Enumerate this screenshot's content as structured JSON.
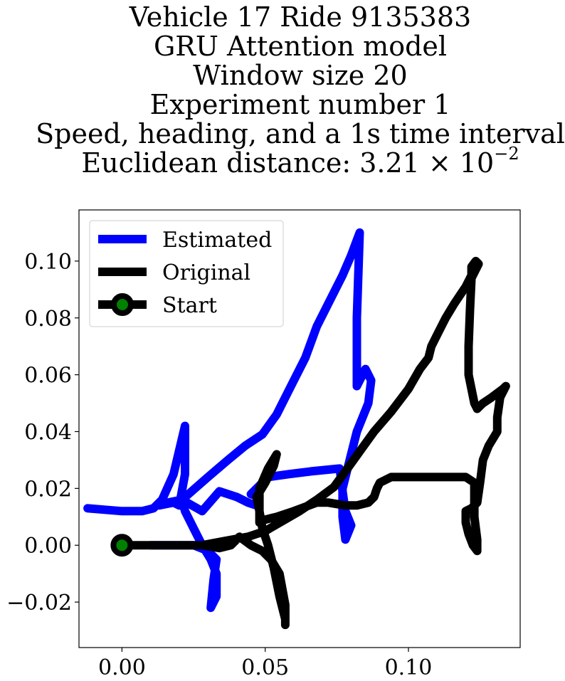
{
  "title_lines": [
    "Vehicle 17 Ride 9135383",
    "GRU Attention model",
    "Window size 20",
    "Experiment number 1",
    "Speed, heading, and a 1s time interval"
  ],
  "title_distance": {
    "prefix": "Euclidean distance: 3.21",
    "times": "×",
    "base": "10",
    "exponent": "−2"
  },
  "chart_data": {
    "type": "line",
    "xlim": [
      -0.015,
      0.139
    ],
    "ylim": [
      -0.036,
      0.118
    ],
    "xticks": [
      0.0,
      0.05,
      0.1
    ],
    "xtick_labels": [
      "0.00",
      "0.05",
      "0.10"
    ],
    "yticks": [
      -0.02,
      0.0,
      0.02,
      0.04,
      0.06,
      0.08,
      0.1
    ],
    "ytick_labels": [
      "−0.02",
      "0.00",
      "0.02",
      "0.04",
      "0.06",
      "0.08",
      "0.10"
    ],
    "grid": false,
    "legend_position": "top-left",
    "series": [
      {
        "name": "Estimated",
        "color": "#0000ff",
        "points": [
          [
            -0.012,
            0.013
          ],
          [
            -0.006,
            0.0125
          ],
          [
            0.0,
            0.012
          ],
          [
            0.007,
            0.012
          ],
          [
            0.011,
            0.013
          ],
          [
            0.014,
            0.016
          ],
          [
            0.018,
            0.025
          ],
          [
            0.022,
            0.042
          ],
          [
            0.022,
            0.025
          ],
          [
            0.02,
            0.014
          ],
          [
            0.018,
            0.015
          ],
          [
            0.013,
            0.014
          ],
          [
            0.016,
            0.015
          ],
          [
            0.021,
            0.016
          ],
          [
            0.028,
            0.012
          ],
          [
            0.034,
            0.019
          ],
          [
            0.04,
            0.017
          ],
          [
            0.044,
            0.015
          ],
          [
            0.047,
            0.014
          ],
          [
            0.048,
            0.017
          ],
          [
            0.045,
            0.018
          ],
          [
            0.049,
            0.022
          ],
          [
            0.051,
            0.024
          ],
          [
            0.058,
            0.025
          ],
          [
            0.066,
            0.026
          ],
          [
            0.076,
            0.027
          ],
          [
            0.077,
            0.019
          ],
          [
            0.078,
            0.012
          ],
          [
            0.08,
            0.007
          ],
          [
            0.078,
            0.002
          ],
          [
            0.077,
            0.01
          ],
          [
            0.077,
            0.02
          ],
          [
            0.079,
            0.028
          ],
          [
            0.082,
            0.04
          ],
          [
            0.086,
            0.05
          ],
          [
            0.087,
            0.058
          ],
          [
            0.085,
            0.062
          ],
          [
            0.082,
            0.056
          ],
          [
            0.082,
            0.08
          ],
          [
            0.083,
            0.11
          ],
          [
            0.08,
            0.102
          ],
          [
            0.077,
            0.095
          ],
          [
            0.073,
            0.087
          ],
          [
            0.068,
            0.077
          ],
          [
            0.064,
            0.066
          ],
          [
            0.059,
            0.056
          ],
          [
            0.054,
            0.046
          ],
          [
            0.049,
            0.039
          ],
          [
            0.043,
            0.035
          ],
          [
            0.037,
            0.03
          ],
          [
            0.03,
            0.024
          ],
          [
            0.021,
            0.016
          ],
          [
            0.022,
            0.012
          ],
          [
            0.025,
            0.006
          ],
          [
            0.028,
            0.0
          ],
          [
            0.031,
            -0.005
          ],
          [
            0.033,
            -0.01
          ],
          [
            0.033,
            -0.018
          ],
          [
            0.031,
            -0.022
          ],
          [
            0.032,
            -0.012
          ],
          [
            0.033,
            -0.005
          ],
          [
            0.03,
            -0.002
          ],
          [
            0.025,
            0.0
          ],
          [
            0.02,
            0.0
          ],
          [
            0.015,
            0.0
          ],
          [
            0.01,
            0.0
          ]
        ]
      },
      {
        "name": "Original",
        "color": "#000000",
        "points": [
          [
            0.0,
            0.0
          ],
          [
            0.01,
            0.0
          ],
          [
            0.02,
            0.0
          ],
          [
            0.028,
            0.0
          ],
          [
            0.036,
            0.0015
          ],
          [
            0.044,
            0.003
          ],
          [
            0.05,
            0.005
          ],
          [
            0.056,
            0.0085
          ],
          [
            0.062,
            0.012
          ],
          [
            0.068,
            0.016
          ],
          [
            0.074,
            0.0205
          ],
          [
            0.078,
            0.026
          ],
          [
            0.083,
            0.033
          ],
          [
            0.088,
            0.04
          ],
          [
            0.094,
            0.047
          ],
          [
            0.1,
            0.055
          ],
          [
            0.104,
            0.062
          ],
          [
            0.107,
            0.066
          ],
          [
            0.108,
            0.07
          ],
          [
            0.11,
            0.074
          ],
          [
            0.113,
            0.08
          ],
          [
            0.116,
            0.085
          ],
          [
            0.12,
            0.091
          ],
          [
            0.122,
            0.095
          ],
          [
            0.122,
            0.098
          ],
          [
            0.1235,
            0.1
          ],
          [
            0.1245,
            0.099
          ],
          [
            0.122,
            0.094
          ],
          [
            0.1215,
            0.083
          ],
          [
            0.121,
            0.07
          ],
          [
            0.121,
            0.06
          ],
          [
            0.123,
            0.05
          ],
          [
            0.124,
            0.048
          ],
          [
            0.126,
            0.05
          ],
          [
            0.129,
            0.052
          ],
          [
            0.133,
            0.055
          ],
          [
            0.134,
            0.056
          ],
          [
            0.132,
            0.052
          ],
          [
            0.131,
            0.045
          ],
          [
            0.131,
            0.04
          ],
          [
            0.128,
            0.035
          ],
          [
            0.126,
            0.03
          ],
          [
            0.125,
            0.022
          ],
          [
            0.124,
            0.015
          ],
          [
            0.122,
            0.013
          ],
          [
            0.12,
            0.012
          ],
          [
            0.12,
            0.008
          ],
          [
            0.121,
            0.004
          ],
          [
            0.1225,
            0.0
          ],
          [
            0.124,
            -0.002
          ],
          [
            0.124,
            0.002
          ],
          [
            0.123,
            0.01
          ],
          [
            0.123,
            0.016
          ],
          [
            0.123,
            0.022
          ],
          [
            0.12,
            0.024
          ],
          [
            0.112,
            0.024
          ],
          [
            0.104,
            0.024
          ],
          [
            0.098,
            0.024
          ],
          [
            0.094,
            0.024
          ],
          [
            0.09,
            0.022
          ],
          [
            0.089,
            0.02
          ],
          [
            0.088,
            0.017
          ],
          [
            0.086,
            0.015
          ],
          [
            0.082,
            0.014
          ],
          [
            0.078,
            0.014
          ],
          [
            0.072,
            0.015
          ],
          [
            0.068,
            0.015
          ],
          [
            0.06,
            0.012
          ],
          [
            0.054,
            0.01
          ],
          [
            0.05,
            0.009
          ],
          [
            0.048,
            0.008
          ],
          [
            0.048,
            0.012
          ],
          [
            0.047,
            0.017
          ],
          [
            0.05,
            0.022
          ],
          [
            0.053,
            0.028
          ],
          [
            0.054,
            0.032
          ],
          [
            0.051,
            0.027
          ],
          [
            0.048,
            0.02
          ],
          [
            0.048,
            0.012
          ],
          [
            0.049,
            0.006
          ],
          [
            0.051,
            0.0
          ],
          [
            0.053,
            -0.008
          ],
          [
            0.055,
            -0.018
          ],
          [
            0.057,
            -0.026
          ],
          [
            0.057,
            -0.028
          ],
          [
            0.057,
            -0.021
          ],
          [
            0.055,
            -0.01
          ],
          [
            0.052,
            -0.005
          ],
          [
            0.049,
            -0.002
          ],
          [
            0.045,
            0.0
          ],
          [
            0.041,
            0.003
          ],
          [
            0.038,
            0.0
          ],
          [
            0.034,
            -0.001
          ],
          [
            0.028,
            0.0
          ],
          [
            0.02,
            0.0
          ],
          [
            0.01,
            0.0
          ],
          [
            0.0,
            0.0
          ]
        ]
      }
    ],
    "start": {
      "name": "Start",
      "x": 0.0,
      "y": 0.0,
      "edge_color": "#000000",
      "face_color": "#008000"
    }
  }
}
